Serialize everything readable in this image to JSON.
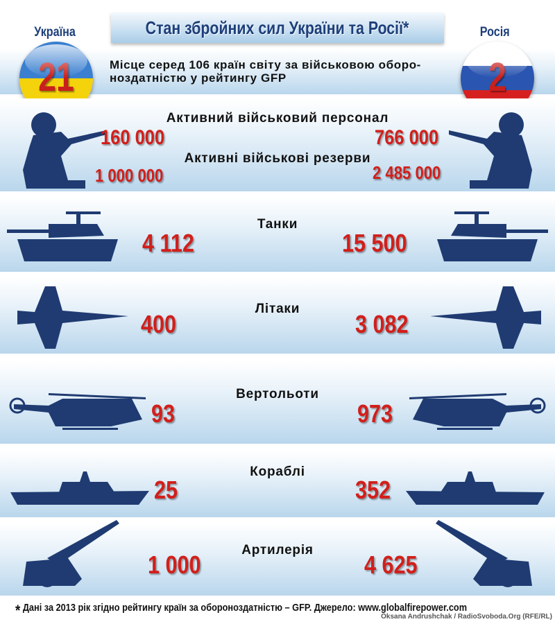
{
  "header": {
    "title": "Стан збройних сил України та Росії*",
    "ranking_text_line1": "Місце серед 106 країн світу за військовою оборо-",
    "ranking_text_line2": "ноздатністю у рейтингу GFP"
  },
  "ukraine": {
    "name": "Україна",
    "rank": "21",
    "flag_colors": [
      "#3a7fd0",
      "#f4d20c"
    ]
  },
  "russia": {
    "name": "Росія",
    "rank": "2",
    "flag_colors": [
      "#ffffff",
      "#2a55b0",
      "#d62020"
    ]
  },
  "rows": {
    "personnel": {
      "label": "Активний військовий персонал",
      "ukraine": "160 000",
      "russia": "766 000",
      "icon": "soldier-icon"
    },
    "reserves": {
      "label": "Активні військові резерви",
      "ukraine": "1 000 000",
      "russia": "2 485 000"
    },
    "tanks": {
      "label": "Танки",
      "ukraine": "4 112",
      "russia": "15 500",
      "icon": "tank-icon"
    },
    "aircraft": {
      "label": "Літаки",
      "ukraine": "400",
      "russia": "3 082",
      "icon": "jet-icon"
    },
    "helicopters": {
      "label": "Вертольоти",
      "ukraine": "93",
      "russia": "973",
      "icon": "helicopter-icon"
    },
    "ships": {
      "label": "Кораблі",
      "ukraine": "25",
      "russia": "352",
      "icon": "warship-icon"
    },
    "artillery": {
      "label": "Артилерія",
      "ukraine": "1 000",
      "russia": "4 625",
      "icon": "artillery-icon"
    }
  },
  "footer": {
    "asterisk": "*",
    "note": "Дані за 2013 рік згідно рейтингу країн за обороноздатністю – GFP.  Джерело: www.globalfirepower.com",
    "credit": "Oksana Andrushchak / RadioSvoboda.Org (RFE/RL)"
  },
  "colors": {
    "numbers": "#d21f1b",
    "silhouettes": "#1f3b72",
    "title": "#1d3f7a"
  }
}
